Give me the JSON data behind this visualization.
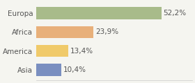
{
  "categories": [
    "Asia",
    "America",
    "Africa",
    "Europa"
  ],
  "values": [
    10.4,
    13.4,
    23.9,
    52.2
  ],
  "labels": [
    "10,4%",
    "13,4%",
    "23,9%",
    "52,2%"
  ],
  "bar_colors": [
    "#7a8fc0",
    "#f0ca6a",
    "#e8b07a",
    "#a8bb8a"
  ],
  "background_color": "#f5f5f0",
  "xlim": [
    0,
    65
  ],
  "label_fontsize": 7.5,
  "category_fontsize": 7.5
}
